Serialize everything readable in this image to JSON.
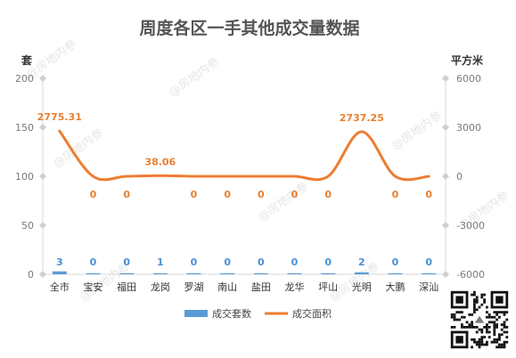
{
  "chart_data": {
    "type": "bar+line",
    "title": "周度各区一手其他成交量数据",
    "categories": [
      "全市",
      "宝安",
      "福田",
      "龙岗",
      "罗湖",
      "南山",
      "盐田",
      "龙华",
      "坪山",
      "光明",
      "大鹏",
      "深汕"
    ],
    "left_axis": {
      "unit": "套",
      "ylim": [
        0,
        200
      ],
      "ticks": [
        0,
        50,
        100,
        150,
        200
      ]
    },
    "right_axis": {
      "unit": "平方米",
      "ylim": [
        -6000,
        6000
      ],
      "ticks": [
        -6000,
        -3000,
        0,
        3000,
        6000
      ]
    },
    "series": [
      {
        "name": "成交套数",
        "type": "bar",
        "axis": "left",
        "color": "#5b9bd5",
        "values": [
          3,
          0,
          0,
          1,
          0,
          0,
          0,
          0,
          0,
          2,
          0,
          0
        ],
        "labels": [
          "3",
          "0",
          "0",
          "1",
          "0",
          "0",
          "0",
          "0",
          "0",
          "2",
          "0",
          "0"
        ]
      },
      {
        "name": "成交面积",
        "type": "line",
        "axis": "right",
        "color": "#ed7d31",
        "smooth": true,
        "values": [
          2775.31,
          0,
          0,
          38.06,
          0,
          0,
          0,
          0,
          0,
          2737.25,
          0,
          0
        ],
        "labels": [
          "2775.31",
          "0",
          "0",
          "38.06",
          "0",
          "0",
          "0",
          "0",
          "0",
          "2737.25",
          "0",
          "0"
        ]
      }
    ],
    "legend_position": "bottom",
    "grid": false
  },
  "watermark": "@房地内参",
  "qr_icon": "qr-code-icon"
}
